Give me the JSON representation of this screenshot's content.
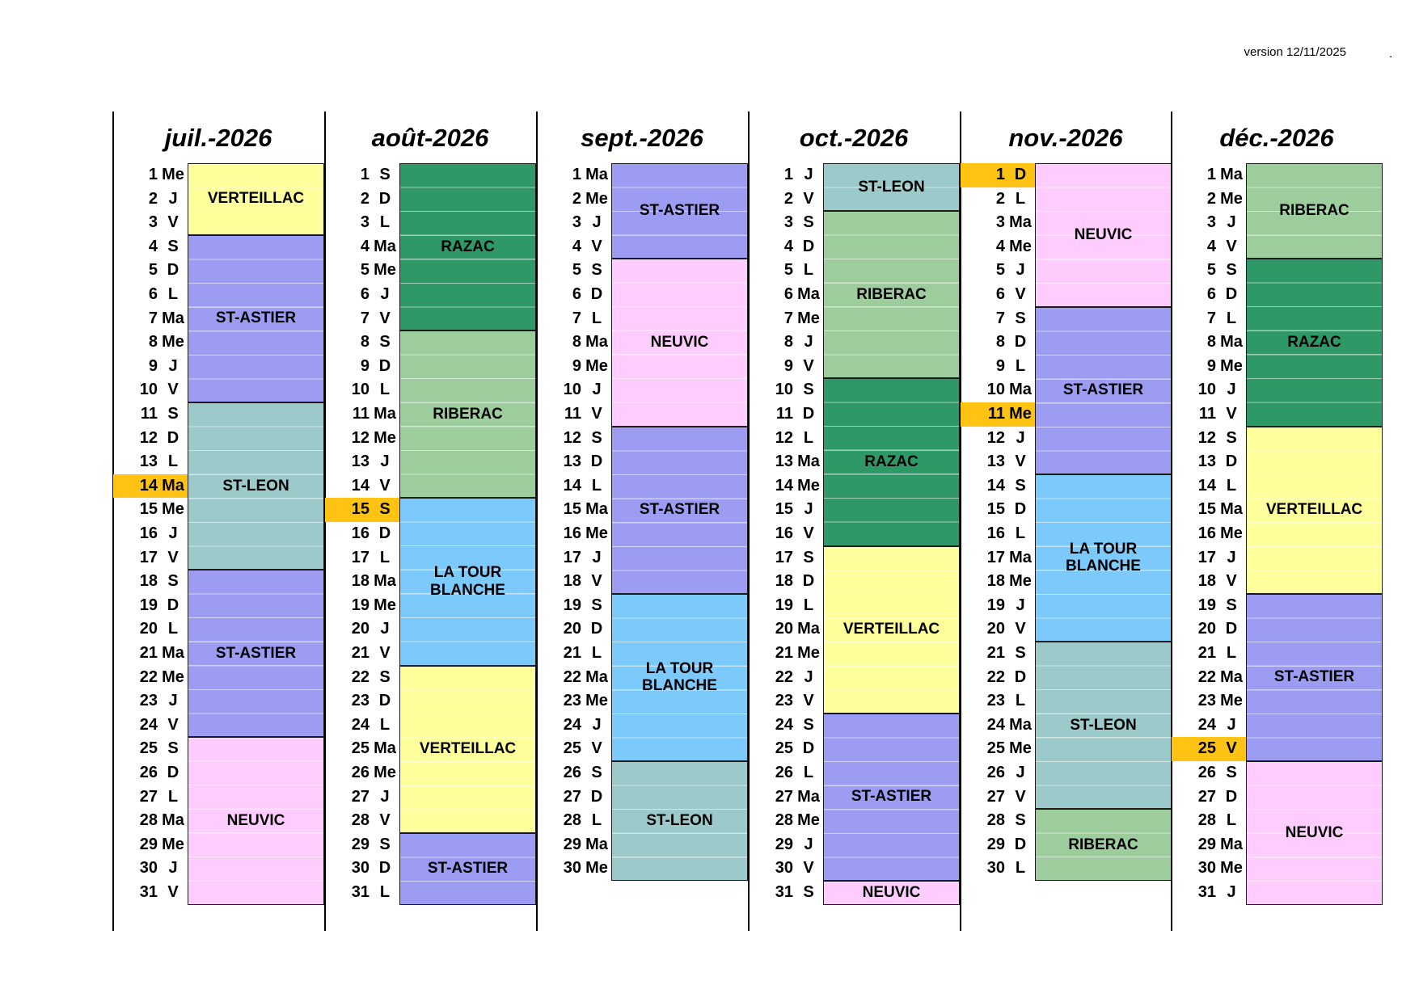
{
  "version_label": "version 12/11/2025",
  "trailing_mark": ".",
  "palette": {
    "VERTEILLAC": "#FFFF9C",
    "ST-ASTIER": "#9C9CF2",
    "ST-LEON": "#9CCACA",
    "NEUVIC": "#FFCCFE",
    "RAZAC": "#2E9966",
    "RIBERAC": "#9DCD9D",
    "LA TOUR BLANCHE": "#7CC9FB",
    "highlight": "#FFC413"
  },
  "months": [
    {
      "title": "juil.-2026",
      "dows": [
        "Me",
        "J",
        "V",
        "S",
        "D",
        "L",
        "Ma",
        "Me",
        "J",
        "V",
        "S",
        "D",
        "L",
        "Ma",
        "Me",
        "J",
        "V",
        "S",
        "D",
        "L",
        "Ma",
        "Me",
        "J",
        "V",
        "S",
        "D",
        "L",
        "Ma",
        "Me",
        "J",
        "V"
      ],
      "highlighted_days": [
        14
      ],
      "blocks": [
        {
          "start": 1,
          "end": 3,
          "label": "VERTEILLAC"
        },
        {
          "start": 4,
          "end": 10,
          "label": "ST-ASTIER"
        },
        {
          "start": 11,
          "end": 17,
          "label": "ST-LEON"
        },
        {
          "start": 18,
          "end": 24,
          "label": "ST-ASTIER"
        },
        {
          "start": 25,
          "end": 31,
          "label": "NEUVIC"
        }
      ]
    },
    {
      "title": "août-2026",
      "dows": [
        "S",
        "D",
        "L",
        "Ma",
        "Me",
        "J",
        "V",
        "S",
        "D",
        "L",
        "Ma",
        "Me",
        "J",
        "V",
        "S",
        "D",
        "L",
        "Ma",
        "Me",
        "J",
        "V",
        "S",
        "D",
        "L",
        "Ma",
        "Me",
        "J",
        "V",
        "S",
        "D",
        "L"
      ],
      "highlighted_days": [
        15
      ],
      "blocks": [
        {
          "start": 1,
          "end": 7,
          "label": "RAZAC"
        },
        {
          "start": 8,
          "end": 14,
          "label": "RIBERAC"
        },
        {
          "start": 15,
          "end": 21,
          "label": "LA TOUR BLANCHE"
        },
        {
          "start": 22,
          "end": 28,
          "label": "VERTEILLAC"
        },
        {
          "start": 29,
          "end": 31,
          "label": "ST-ASTIER"
        }
      ]
    },
    {
      "title": "sept.-2026",
      "dows": [
        "Ma",
        "Me",
        "J",
        "V",
        "S",
        "D",
        "L",
        "Ma",
        "Me",
        "J",
        "V",
        "S",
        "D",
        "L",
        "Ma",
        "Me",
        "J",
        "V",
        "S",
        "D",
        "L",
        "Ma",
        "Me",
        "J",
        "V",
        "S",
        "D",
        "L",
        "Ma",
        "Me"
      ],
      "highlighted_days": [],
      "blocks": [
        {
          "start": 1,
          "end": 4,
          "label": "ST-ASTIER"
        },
        {
          "start": 5,
          "end": 11,
          "label": "NEUVIC"
        },
        {
          "start": 12,
          "end": 18,
          "label": "ST-ASTIER"
        },
        {
          "start": 19,
          "end": 25,
          "label": "LA TOUR BLANCHE"
        },
        {
          "start": 26,
          "end": 30,
          "label": "ST-LEON"
        }
      ]
    },
    {
      "title": "oct.-2026",
      "dows": [
        "J",
        "V",
        "S",
        "D",
        "L",
        "Ma",
        "Me",
        "J",
        "V",
        "S",
        "D",
        "L",
        "Ma",
        "Me",
        "J",
        "V",
        "S",
        "D",
        "L",
        "Ma",
        "Me",
        "J",
        "V",
        "S",
        "D",
        "L",
        "Ma",
        "Me",
        "J",
        "V",
        "S"
      ],
      "highlighted_days": [],
      "blocks": [
        {
          "start": 1,
          "end": 2,
          "label": "ST-LEON"
        },
        {
          "start": 3,
          "end": 9,
          "label": "RIBERAC"
        },
        {
          "start": 10,
          "end": 16,
          "label": "RAZAC"
        },
        {
          "start": 17,
          "end": 23,
          "label": "VERTEILLAC"
        },
        {
          "start": 24,
          "end": 30,
          "label": "ST-ASTIER"
        },
        {
          "start": 31,
          "end": 31,
          "label": "NEUVIC"
        }
      ]
    },
    {
      "title": "nov.-2026",
      "dows": [
        "D",
        "L",
        "Ma",
        "Me",
        "J",
        "V",
        "S",
        "D",
        "L",
        "Ma",
        "Me",
        "J",
        "V",
        "S",
        "D",
        "L",
        "Ma",
        "Me",
        "J",
        "V",
        "S",
        "D",
        "L",
        "Ma",
        "Me",
        "J",
        "V",
        "S",
        "D",
        "L"
      ],
      "highlighted_days": [
        1,
        11
      ],
      "blocks": [
        {
          "start": 1,
          "end": 6,
          "label": "NEUVIC"
        },
        {
          "start": 7,
          "end": 13,
          "label": "ST-ASTIER"
        },
        {
          "start": 14,
          "end": 20,
          "label": "LA TOUR BLANCHE"
        },
        {
          "start": 21,
          "end": 27,
          "label": "ST-LEON"
        },
        {
          "start": 28,
          "end": 30,
          "label": "RIBERAC"
        }
      ]
    },
    {
      "title": "déc.-2026",
      "dows": [
        "Ma",
        "Me",
        "J",
        "V",
        "S",
        "D",
        "L",
        "Ma",
        "Me",
        "J",
        "V",
        "S",
        "D",
        "L",
        "Ma",
        "Me",
        "J",
        "V",
        "S",
        "D",
        "L",
        "Ma",
        "Me",
        "J",
        "V",
        "S",
        "D",
        "L",
        "Ma",
        "Me",
        "J"
      ],
      "highlighted_days": [
        25
      ],
      "blocks": [
        {
          "start": 1,
          "end": 4,
          "label": "RIBERAC"
        },
        {
          "start": 5,
          "end": 11,
          "label": "RAZAC"
        },
        {
          "start": 12,
          "end": 18,
          "label": "VERTEILLAC"
        },
        {
          "start": 19,
          "end": 25,
          "label": "ST-ASTIER"
        },
        {
          "start": 26,
          "end": 31,
          "label": "NEUVIC"
        }
      ]
    }
  ]
}
